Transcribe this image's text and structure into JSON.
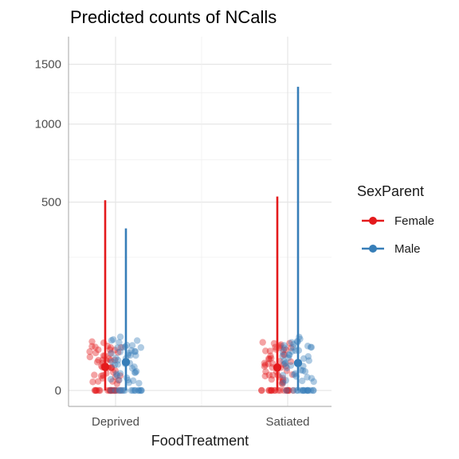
{
  "chart_data": {
    "type": "scatter",
    "title": "Predicted counts of NCalls",
    "xlabel": "FoodTreatment",
    "ylabel": "",
    "categories": [
      "Deprived",
      "Satiated"
    ],
    "y_scale": "sqrt",
    "y_ticks": [
      0,
      500,
      1000,
      1500
    ],
    "y_tick_labels": [
      "0",
      "500",
      "1000",
      "1500"
    ],
    "grid": true,
    "legend": {
      "title": "SexParent",
      "position": "right"
    },
    "series": [
      {
        "name": "Female",
        "color": "#e41a1c",
        "points": [
          {
            "category": "Deprived",
            "estimate": 7.8,
            "lower": 0,
            "upper": 510
          },
          {
            "category": "Satiated",
            "estimate": 7.4,
            "lower": 0,
            "upper": 530
          }
        ],
        "raw_counts": [
          0,
          0,
          0,
          0,
          0,
          0,
          0,
          0,
          0,
          0,
          0,
          0,
          0,
          0,
          0,
          0,
          0,
          0,
          1,
          1,
          1,
          1,
          2,
          2,
          2,
          3,
          3,
          3,
          4,
          4,
          5,
          5,
          6,
          6,
          7,
          7,
          8,
          9,
          9,
          10,
          11,
          12,
          12,
          13,
          14,
          15,
          16,
          17,
          18,
          19,
          20,
          21,
          22,
          23,
          24,
          25,
          26,
          27,
          28,
          29,
          30,
          32,
          34
        ]
      },
      {
        "name": "Male",
        "color": "#377eb8",
        "points": [
          {
            "category": "Deprived",
            "estimate": 11.3,
            "lower": 0,
            "upper": 370
          },
          {
            "category": "Satiated",
            "estimate": 10.6,
            "lower": 0,
            "upper": 1300
          }
        ],
        "raw_counts": [
          0,
          0,
          0,
          0,
          0,
          0,
          0,
          0,
          0,
          0,
          0,
          0,
          0,
          0,
          0,
          0,
          1,
          1,
          1,
          2,
          2,
          2,
          3,
          3,
          4,
          4,
          5,
          5,
          6,
          6,
          7,
          8,
          9,
          10,
          11,
          12,
          13,
          14,
          15,
          16,
          17,
          18,
          19,
          20,
          21,
          22,
          23,
          24,
          25,
          26,
          27,
          28,
          29,
          30,
          31,
          33,
          35,
          37,
          40
        ]
      }
    ]
  }
}
